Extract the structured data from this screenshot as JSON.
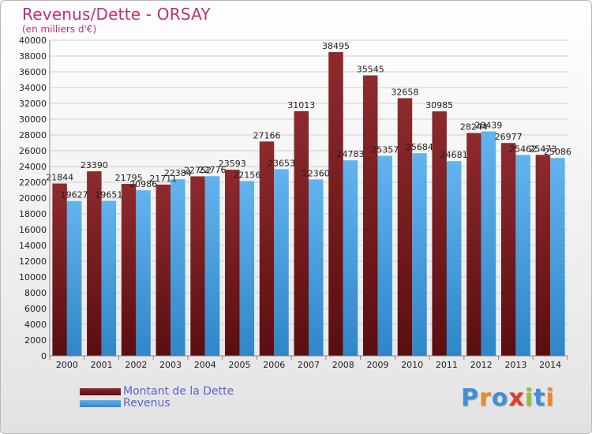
{
  "header": {
    "title": "Revenus/Dette - ORSAY",
    "subtitle": "(en milliers d'€)"
  },
  "colors": {
    "dette": "#7a1e22",
    "revenus": "#4aa3e3",
    "title": "#c0306e",
    "legend_text": "#5b62d8"
  },
  "chart_data": {
    "type": "bar",
    "categories": [
      "2000",
      "2001",
      "2002",
      "2003",
      "2004",
      "2005",
      "2006",
      "2007",
      "2008",
      "2009",
      "2010",
      "2011",
      "2012",
      "2013",
      "2014"
    ],
    "series": [
      {
        "name": "Montant de la Dette",
        "values": [
          21844,
          23390,
          21795,
          21711,
          22752,
          23593,
          27166,
          31013,
          38495,
          35545,
          32658,
          30985,
          28244,
          26977,
          25473
        ]
      },
      {
        "name": "Revenus",
        "values": [
          19627,
          19651,
          20986,
          22384,
          22776,
          22156,
          23653,
          22360,
          24783,
          25357,
          25684,
          24681,
          28439,
          25462,
          25086
        ]
      }
    ],
    "ylim": [
      0,
      40000
    ],
    "ytick_step": 2000,
    "grid": true,
    "legend_position": "bottom-left"
  },
  "legend": {
    "items": [
      {
        "label": "Montant de la Dette"
      },
      {
        "label": "Revenus"
      }
    ]
  },
  "logo": {
    "letters": [
      "P",
      "r",
      "o",
      "x",
      "i",
      "t",
      "i"
    ],
    "letter_colors": [
      "#3e8fd8",
      "#e8892a",
      "#3e8fd8",
      "#e23a2a",
      "#8cc43c",
      "#3e8fd8",
      "#e8892a"
    ]
  }
}
